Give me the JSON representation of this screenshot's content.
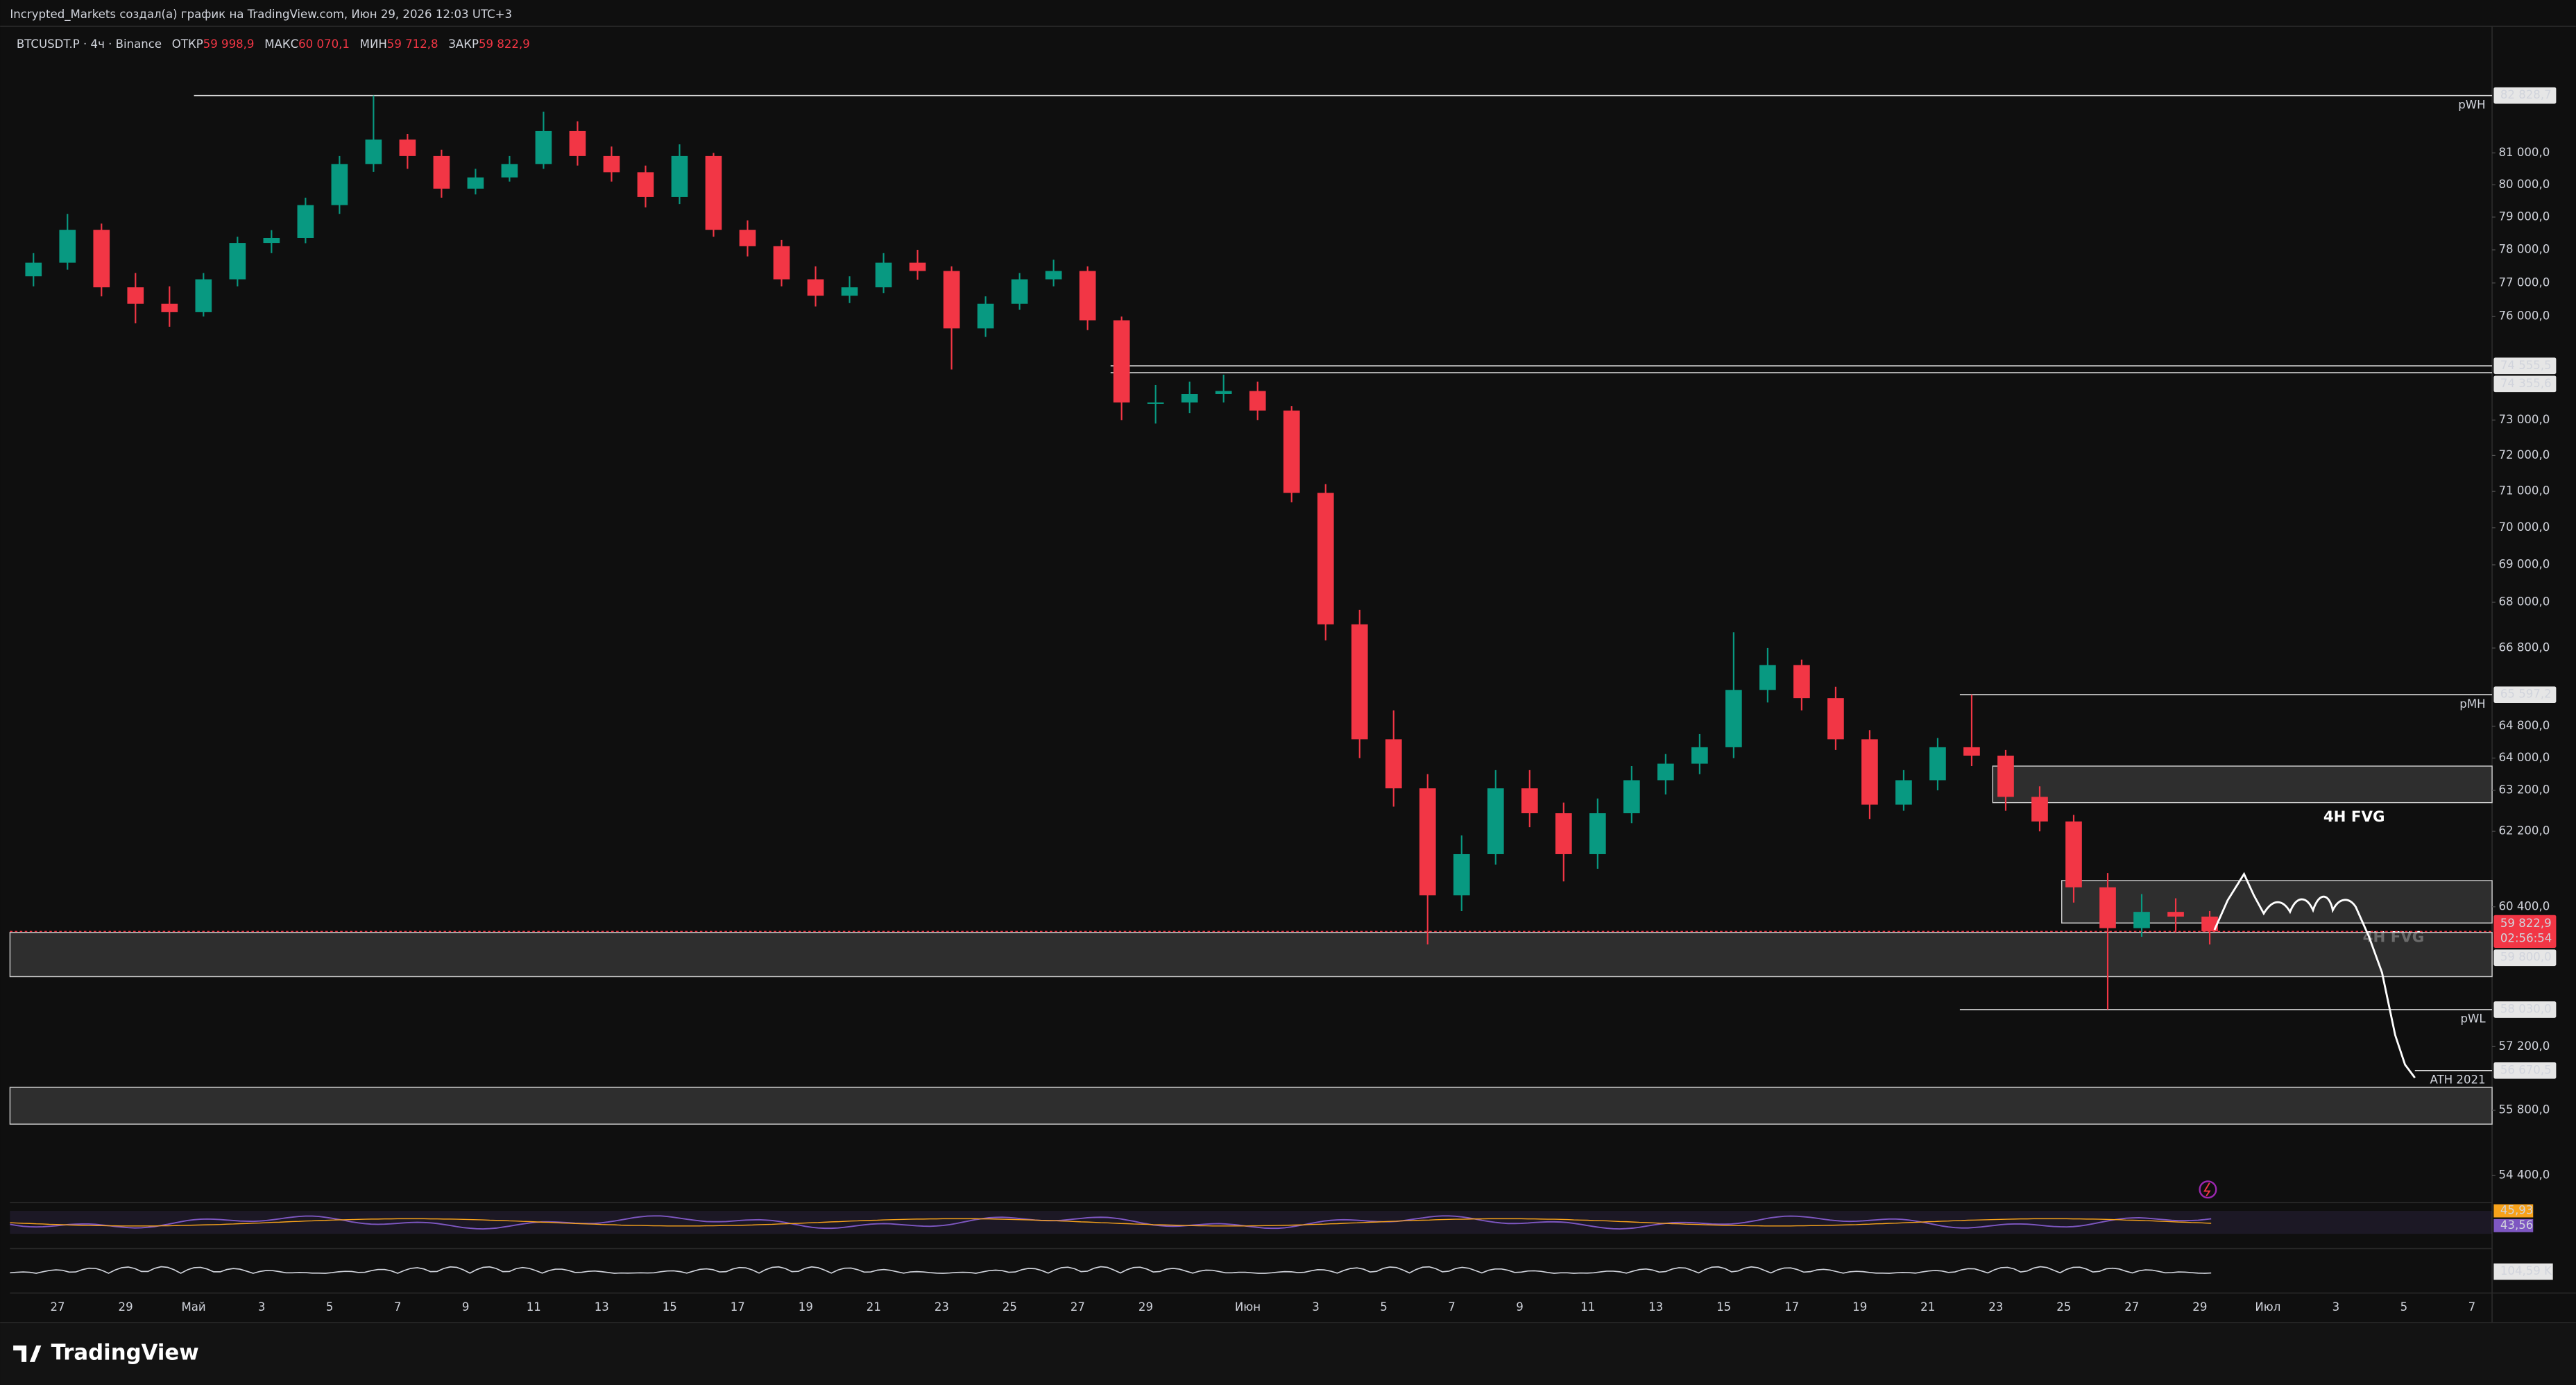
{
  "header": {
    "author_line": "Incrypted_Markets создал(а) график на TradingView.com, Июн 29, 2026 12:03 UTC+3",
    "symbol": "BTCUSDT.P · 4ч · Binance",
    "ohlc": [
      {
        "name": "ОТКР",
        "value": "59 998,9"
      },
      {
        "name": "МАКС",
        "value": "60 070,1"
      },
      {
        "name": "МИН",
        "value": "59 712,8"
      },
      {
        "name": "ЗАКР",
        "value": "59 822,9"
      }
    ]
  },
  "chart_data": {
    "type": "candlestick",
    "log_scale": true,
    "grid": false,
    "colors": {
      "up": "#089981",
      "down": "#f23645"
    },
    "ylim": [
      53830,
      85200
    ],
    "yticks": [
      {
        "value": 81000,
        "label": "81 000,0"
      },
      {
        "value": 80000,
        "label": "80 000,0"
      },
      {
        "value": 79000,
        "label": "79 000,0"
      },
      {
        "value": 78000,
        "label": "78 000,0"
      },
      {
        "value": 77000,
        "label": "77 000,0"
      },
      {
        "value": 76000,
        "label": "76 000,0"
      },
      {
        "value": 73000,
        "label": "73 000,0"
      },
      {
        "value": 72000,
        "label": "72 000,0"
      },
      {
        "value": 71000,
        "label": "71 000,0"
      },
      {
        "value": 70000,
        "label": "70 000,0"
      },
      {
        "value": 69000,
        "label": "69 000,0"
      },
      {
        "value": 68000,
        "label": "68 000,0"
      },
      {
        "value": 66800,
        "label": "66 800,0"
      },
      {
        "value": 64800,
        "label": "64 800,0"
      },
      {
        "value": 64000,
        "label": "64 000,0"
      },
      {
        "value": 63200,
        "label": "63 200,0"
      },
      {
        "value": 62200,
        "label": "62 200,0"
      },
      {
        "value": 60400,
        "label": "60 400,0"
      },
      {
        "value": 57200,
        "label": "57 200,0"
      },
      {
        "value": 55800,
        "label": "55 800,0"
      },
      {
        "value": 54400,
        "label": "54 400,0"
      }
    ],
    "x_labels": [
      "27",
      "29",
      "Май",
      "3",
      "5",
      "7",
      "9",
      "11",
      "13",
      "15",
      "17",
      "19",
      "21",
      "23",
      "25",
      "27",
      "29",
      "Июн",
      "3",
      "5",
      "7",
      "9",
      "11",
      "13",
      "15",
      "17",
      "19",
      "21",
      "23",
      "25",
      "27",
      "29",
      "Июл",
      "3",
      "5",
      "7"
    ],
    "ohlc": [
      [
        77200,
        77900,
        76900,
        77610
      ],
      [
        77610,
        79100,
        77400,
        78610
      ],
      [
        78610,
        78800,
        76600,
        76870
      ],
      [
        76870,
        77300,
        75800,
        76380
      ],
      [
        76380,
        76900,
        75700,
        76130
      ],
      [
        76130,
        77300,
        76000,
        77110
      ],
      [
        77110,
        78400,
        76900,
        78210
      ],
      [
        78210,
        78600,
        77900,
        78360
      ],
      [
        78360,
        79600,
        78200,
        79370
      ],
      [
        79370,
        80900,
        79100,
        80650
      ],
      [
        80650,
        82828.7,
        80400,
        81420
      ],
      [
        81420,
        81600,
        80500,
        80900
      ],
      [
        80900,
        81100,
        79600,
        79880
      ],
      [
        79880,
        80500,
        79700,
        80230
      ],
      [
        80230,
        80900,
        80100,
        80650
      ],
      [
        80650,
        82310,
        80500,
        81690
      ],
      [
        81690,
        82000,
        80600,
        80900
      ],
      [
        80900,
        81200,
        80100,
        80390
      ],
      [
        80390,
        80600,
        79300,
        79620
      ],
      [
        79620,
        81270,
        79400,
        80900
      ],
      [
        80900,
        81000,
        78400,
        78610
      ],
      [
        78610,
        78900,
        77800,
        78110
      ],
      [
        78110,
        78300,
        76900,
        77110
      ],
      [
        77110,
        77500,
        76300,
        76620
      ],
      [
        76620,
        77200,
        76400,
        76870
      ],
      [
        76870,
        77900,
        76700,
        77610
      ],
      [
        77610,
        78000,
        77100,
        77360
      ],
      [
        77360,
        77500,
        74450,
        75650
      ],
      [
        75650,
        76600,
        75400,
        76380
      ],
      [
        76380,
        77300,
        76200,
        77110
      ],
      [
        77110,
        77700,
        76900,
        77360
      ],
      [
        77360,
        77500,
        75600,
        75890
      ],
      [
        75890,
        76000,
        73000,
        73500
      ],
      [
        73500,
        74000,
        72900,
        73500
      ],
      [
        73500,
        74100,
        73200,
        73740
      ],
      [
        73740,
        74300,
        73500,
        73830
      ],
      [
        73830,
        74100,
        73000,
        73270
      ],
      [
        73270,
        73400,
        70700,
        70960
      ],
      [
        70960,
        71200,
        67000,
        67420
      ],
      [
        67420,
        67800,
        64000,
        64470
      ],
      [
        64470,
        65200,
        62800,
        63250
      ],
      [
        63250,
        63600,
        59520,
        60670
      ],
      [
        60670,
        62100,
        60300,
        61650
      ],
      [
        61650,
        63700,
        61400,
        63250
      ],
      [
        63250,
        63700,
        62300,
        62640
      ],
      [
        62640,
        62900,
        61000,
        61650
      ],
      [
        61650,
        63000,
        61300,
        62640
      ],
      [
        62640,
        63800,
        62400,
        63450
      ],
      [
        63450,
        64100,
        63100,
        63860
      ],
      [
        63860,
        64600,
        63600,
        64270
      ],
      [
        64270,
        67210,
        64000,
        65720
      ],
      [
        65720,
        66800,
        65400,
        66360
      ],
      [
        66360,
        66500,
        65200,
        65510
      ],
      [
        65510,
        65800,
        64200,
        64470
      ],
      [
        64470,
        64700,
        62500,
        62850
      ],
      [
        62850,
        63700,
        62700,
        63450
      ],
      [
        63450,
        64500,
        63200,
        64270
      ],
      [
        64270,
        65597.2,
        63800,
        64060
      ],
      [
        64060,
        64200,
        62700,
        63040
      ],
      [
        63040,
        63300,
        62200,
        62440
      ],
      [
        62440,
        62600,
        60500,
        60860
      ],
      [
        60860,
        61200,
        58030,
        59900
      ],
      [
        59900,
        60700,
        59700,
        60280
      ],
      [
        60280,
        60600,
        59800,
        60170
      ],
      [
        60170,
        60300,
        59520,
        59822.9
      ]
    ],
    "levels": [
      {
        "label": "pWH",
        "value": 82828.7,
        "value_label": "82 828,7"
      },
      {
        "value": 74555.5,
        "value_label": "74 555,5"
      },
      {
        "value": 74355.6,
        "value_label": "74 355,6"
      },
      {
        "label": "pMH",
        "value": 65597.2,
        "value_label": "65 597,2"
      },
      {
        "label": "pWL",
        "value": 58030,
        "value_label": "58 030,0"
      },
      {
        "label": "ATH 2021",
        "value": 56670.5,
        "value_label": "56 670,5"
      }
    ],
    "zones": [
      {
        "label": "4H FVG",
        "top": 63800,
        "bottom": 62900
      },
      {
        "label": "4H FVG",
        "top": 61020,
        "bottom": 60020
      },
      {
        "top": 59800,
        "top_label": "59 800,0",
        "bottom": 58780
      },
      {
        "top": 56300,
        "bottom": 55500
      }
    ],
    "current": {
      "value": 59822.9,
      "value_label": "59 822,9",
      "countdown": "02:56:54"
    },
    "rsi_labels": [
      "45,93",
      "43,56"
    ],
    "volume_label": "104,59 K"
  },
  "footer": {
    "logo": "TradingView"
  }
}
